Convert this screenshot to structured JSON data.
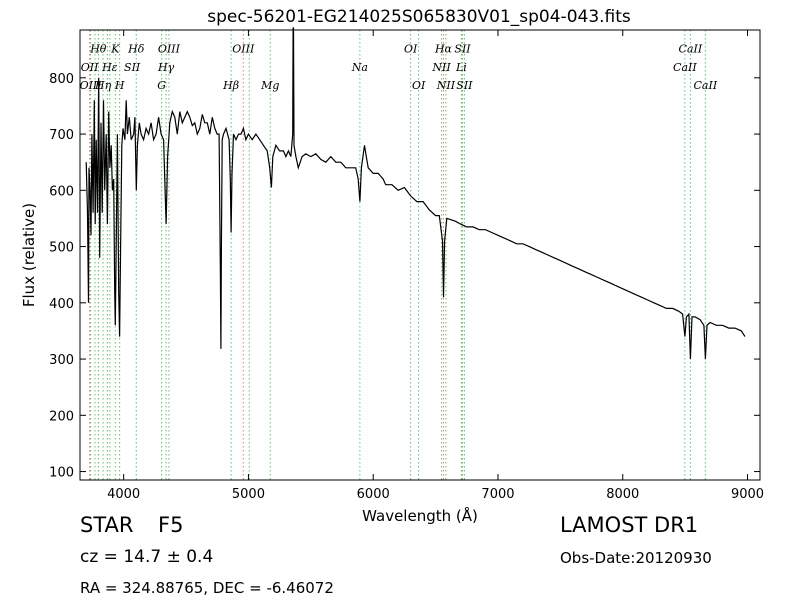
{
  "chart_data": {
    "type": "line",
    "title": "spec-56201-EG214025S065830V01_sp04-043.fits",
    "xlabel": "Wavelength (Å)",
    "ylabel": "Flux (relative)",
    "xlim": [
      3650,
      9100
    ],
    "ylim": [
      85,
      885
    ],
    "xticks": [
      4000,
      5000,
      6000,
      7000,
      8000,
      9000
    ],
    "yticks": [
      100,
      200,
      300,
      400,
      500,
      600,
      700,
      800
    ],
    "grid": false,
    "series": [
      {
        "color": "#000000",
        "points": [
          [
            3700,
            650
          ],
          [
            3710,
            560
          ],
          [
            3718,
            400
          ],
          [
            3722,
            640
          ],
          [
            3730,
            600
          ],
          [
            3738,
            520
          ],
          [
            3745,
            700
          ],
          [
            3755,
            560
          ],
          [
            3765,
            760
          ],
          [
            3772,
            540
          ],
          [
            3780,
            690
          ],
          [
            3790,
            560
          ],
          [
            3800,
            800
          ],
          [
            3808,
            480
          ],
          [
            3818,
            720
          ],
          [
            3828,
            560
          ],
          [
            3838,
            760
          ],
          [
            3848,
            600
          ],
          [
            3860,
            700
          ],
          [
            3870,
            540
          ],
          [
            3880,
            740
          ],
          [
            3890,
            640
          ],
          [
            3900,
            680
          ],
          [
            3910,
            600
          ],
          [
            3920,
            620
          ],
          [
            3928,
            420
          ],
          [
            3933,
            360
          ],
          [
            3940,
            500
          ],
          [
            3950,
            700
          ],
          [
            3960,
            420
          ],
          [
            3967,
            340
          ],
          [
            3975,
            500
          ],
          [
            3985,
            680
          ],
          [
            3995,
            710
          ],
          [
            4010,
            690
          ],
          [
            4020,
            760
          ],
          [
            4030,
            700
          ],
          [
            4045,
            730
          ],
          [
            4060,
            690
          ],
          [
            4080,
            700
          ],
          [
            4090,
            730
          ],
          [
            4101,
            600
          ],
          [
            4110,
            680
          ],
          [
            4125,
            720
          ],
          [
            4140,
            700
          ],
          [
            4160,
            690
          ],
          [
            4180,
            710
          ],
          [
            4200,
            700
          ],
          [
            4220,
            720
          ],
          [
            4240,
            690
          ],
          [
            4260,
            700
          ],
          [
            4280,
            730
          ],
          [
            4300,
            700
          ],
          [
            4320,
            690
          ],
          [
            4340,
            540
          ],
          [
            4352,
            660
          ],
          [
            4370,
            720
          ],
          [
            4390,
            740
          ],
          [
            4410,
            730
          ],
          [
            4430,
            700
          ],
          [
            4450,
            740
          ],
          [
            4470,
            720
          ],
          [
            4490,
            730
          ],
          [
            4510,
            740
          ],
          [
            4530,
            730
          ],
          [
            4550,
            715
          ],
          [
            4570,
            720
          ],
          [
            4590,
            700
          ],
          [
            4610,
            710
          ],
          [
            4630,
            735
          ],
          [
            4650,
            720
          ],
          [
            4670,
            720
          ],
          [
            4690,
            700
          ],
          [
            4710,
            730
          ],
          [
            4730,
            710
          ],
          [
            4750,
            700
          ],
          [
            4765,
            700
          ],
          [
            4775,
            450
          ],
          [
            4779,
            318
          ],
          [
            4783,
            500
          ],
          [
            4790,
            690
          ],
          [
            4800,
            700
          ],
          [
            4820,
            710
          ],
          [
            4845,
            690
          ],
          [
            4855,
            620
          ],
          [
            4861,
            525
          ],
          [
            4868,
            630
          ],
          [
            4880,
            700
          ],
          [
            4900,
            690
          ],
          [
            4920,
            700
          ],
          [
            4940,
            700
          ],
          [
            4960,
            710
          ],
          [
            4980,
            690
          ],
          [
            5000,
            700
          ],
          [
            5030,
            690
          ],
          [
            5060,
            700
          ],
          [
            5090,
            690
          ],
          [
            5120,
            680
          ],
          [
            5150,
            670
          ],
          [
            5170,
            640
          ],
          [
            5184,
            605
          ],
          [
            5195,
            660
          ],
          [
            5220,
            680
          ],
          [
            5250,
            670
          ],
          [
            5280,
            670
          ],
          [
            5300,
            660
          ],
          [
            5320,
            670
          ],
          [
            5340,
            660
          ],
          [
            5355,
            700
          ],
          [
            5358,
            900
          ],
          [
            5361,
            900
          ],
          [
            5365,
            680
          ],
          [
            5380,
            660
          ],
          [
            5400,
            640
          ],
          [
            5430,
            660
          ],
          [
            5460,
            665
          ],
          [
            5500,
            660
          ],
          [
            5540,
            665
          ],
          [
            5580,
            655
          ],
          [
            5620,
            650
          ],
          [
            5660,
            660
          ],
          [
            5700,
            650
          ],
          [
            5740,
            650
          ],
          [
            5780,
            640
          ],
          [
            5820,
            640
          ],
          [
            5860,
            640
          ],
          [
            5880,
            620
          ],
          [
            5893,
            580
          ],
          [
            5905,
            640
          ],
          [
            5930,
            680
          ],
          [
            5945,
            660
          ],
          [
            5960,
            640
          ],
          [
            6000,
            630
          ],
          [
            6040,
            630
          ],
          [
            6080,
            620
          ],
          [
            6100,
            610
          ],
          [
            6150,
            610
          ],
          [
            6200,
            600
          ],
          [
            6250,
            605
          ],
          [
            6300,
            590
          ],
          [
            6350,
            580
          ],
          [
            6400,
            580
          ],
          [
            6450,
            565
          ],
          [
            6500,
            555
          ],
          [
            6530,
            555
          ],
          [
            6555,
            510
          ],
          [
            6563,
            410
          ],
          [
            6572,
            510
          ],
          [
            6590,
            550
          ],
          [
            6620,
            548
          ],
          [
            6660,
            545
          ],
          [
            6700,
            540
          ],
          [
            6750,
            535
          ],
          [
            6800,
            535
          ],
          [
            6850,
            530
          ],
          [
            6900,
            530
          ],
          [
            6950,
            525
          ],
          [
            7000,
            520
          ],
          [
            7050,
            515
          ],
          [
            7100,
            510
          ],
          [
            7150,
            505
          ],
          [
            7200,
            505
          ],
          [
            7250,
            500
          ],
          [
            7300,
            495
          ],
          [
            7350,
            490
          ],
          [
            7400,
            485
          ],
          [
            7450,
            480
          ],
          [
            7500,
            475
          ],
          [
            7550,
            470
          ],
          [
            7600,
            465
          ],
          [
            7650,
            460
          ],
          [
            7700,
            455
          ],
          [
            7750,
            450
          ],
          [
            7800,
            445
          ],
          [
            7850,
            440
          ],
          [
            7900,
            435
          ],
          [
            7950,
            430
          ],
          [
            8000,
            425
          ],
          [
            8050,
            420
          ],
          [
            8100,
            415
          ],
          [
            8150,
            410
          ],
          [
            8200,
            405
          ],
          [
            8250,
            400
          ],
          [
            8300,
            395
          ],
          [
            8350,
            390
          ],
          [
            8400,
            390
          ],
          [
            8450,
            385
          ],
          [
            8480,
            380
          ],
          [
            8498,
            340
          ],
          [
            8510,
            375
          ],
          [
            8530,
            380
          ],
          [
            8542,
            300
          ],
          [
            8555,
            375
          ],
          [
            8580,
            375
          ],
          [
            8620,
            370
          ],
          [
            8650,
            360
          ],
          [
            8662,
            300
          ],
          [
            8675,
            360
          ],
          [
            8700,
            365
          ],
          [
            8750,
            360
          ],
          [
            8800,
            360
          ],
          [
            8850,
            355
          ],
          [
            8900,
            355
          ],
          [
            8950,
            350
          ],
          [
            8980,
            340
          ]
        ]
      }
    ],
    "line_markers": {
      "red_color": "#e07a7a",
      "green_color": "#66bb6a",
      "lines": [
        {
          "x": 3727,
          "color": "red"
        },
        {
          "x": 3735,
          "color": "green"
        },
        {
          "x": 3770,
          "color": "green"
        },
        {
          "x": 3798,
          "color": "green"
        },
        {
          "x": 3835,
          "color": "green"
        },
        {
          "x": 3869,
          "color": "green"
        },
        {
          "x": 3889,
          "color": "green"
        },
        {
          "x": 3933,
          "color": "green"
        },
        {
          "x": 3968,
          "color": "green"
        },
        {
          "x": 4101,
          "color": "green"
        },
        {
          "x": 4304,
          "color": "green"
        },
        {
          "x": 4340,
          "color": "green"
        },
        {
          "x": 4363,
          "color": "green"
        },
        {
          "x": 4861,
          "color": "green"
        },
        {
          "x": 4959,
          "color": "red"
        },
        {
          "x": 5007,
          "color": "green"
        },
        {
          "x": 5175,
          "color": "green"
        },
        {
          "x": 5893,
          "color": "green"
        },
        {
          "x": 6300,
          "color": "green"
        },
        {
          "x": 6364,
          "color": "green"
        },
        {
          "x": 6548,
          "color": "green"
        },
        {
          "x": 6563,
          "color": "red"
        },
        {
          "x": 6583,
          "color": "green"
        },
        {
          "x": 6707,
          "color": "green"
        },
        {
          "x": 6716,
          "color": "green"
        },
        {
          "x": 6731,
          "color": "green"
        },
        {
          "x": 8498,
          "color": "green"
        },
        {
          "x": 8542,
          "color": "green"
        },
        {
          "x": 8662,
          "color": "green"
        }
      ]
    },
    "annotations": [
      {
        "text": "Hθ",
        "x": 3797,
        "y": 845
      },
      {
        "text": "K",
        "x": 3933,
        "y": 845
      },
      {
        "text": "Hδ",
        "x": 4101,
        "y": 845
      },
      {
        "text": "OIII",
        "x": 4363,
        "y": 845
      },
      {
        "text": "OIII",
        "x": 4959,
        "y": 845
      },
      {
        "text": "OI",
        "x": 6300,
        "y": 845
      },
      {
        "text": "Hα",
        "x": 6563,
        "y": 845
      },
      {
        "text": "SII",
        "x": 6716,
        "y": 845
      },
      {
        "text": "CaII",
        "x": 8542,
        "y": 845
      },
      {
        "text": "OII",
        "x": 3727,
        "y": 812
      },
      {
        "text": "Hε",
        "x": 3889,
        "y": 812
      },
      {
        "text": "SII",
        "x": 4068,
        "y": 812
      },
      {
        "text": "Hγ",
        "x": 4340,
        "y": 812
      },
      {
        "text": "Na",
        "x": 5893,
        "y": 812
      },
      {
        "text": "NII",
        "x": 6548,
        "y": 812
      },
      {
        "text": "Li",
        "x": 6707,
        "y": 812
      },
      {
        "text": "CaII",
        "x": 8498,
        "y": 812
      },
      {
        "text": "OIII",
        "x": 3735,
        "y": 780
      },
      {
        "text": "Hη",
        "x": 3835,
        "y": 780
      },
      {
        "text": "H",
        "x": 3968,
        "y": 780
      },
      {
        "text": "G",
        "x": 4304,
        "y": 780
      },
      {
        "text": "Hβ",
        "x": 4861,
        "y": 780
      },
      {
        "text": "Mg",
        "x": 5175,
        "y": 780
      },
      {
        "text": "OI",
        "x": 6364,
        "y": 780
      },
      {
        "text": "NII",
        "x": 6583,
        "y": 780
      },
      {
        "text": "SII",
        "x": 6731,
        "y": 780
      },
      {
        "text": "CaII",
        "x": 8662,
        "y": 780
      }
    ]
  },
  "info": {
    "object_type": "STAR",
    "subclass": "F5",
    "survey": "LAMOST DR1",
    "redshift": "cz = 14.7 ± 0.4",
    "obs_date": "Obs-Date:20120930",
    "coords": "RA = 324.88765, DEC = -6.46072"
  }
}
